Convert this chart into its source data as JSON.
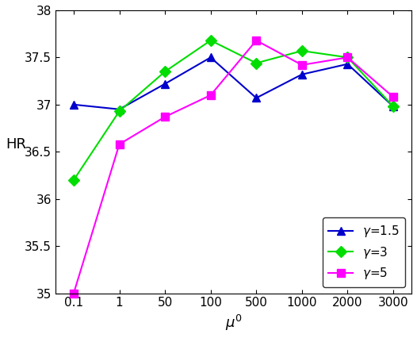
{
  "x_labels": [
    "0.1",
    "1",
    "50",
    "100",
    "500",
    "1000",
    "2000",
    "3000"
  ],
  "x_positions": [
    0,
    1,
    2,
    3,
    4,
    5,
    6,
    7
  ],
  "gamma_1_5": [
    37.0,
    36.95,
    37.22,
    37.5,
    37.07,
    37.32,
    37.43,
    36.98
  ],
  "gamma_3": [
    36.2,
    36.93,
    37.35,
    37.68,
    37.44,
    37.57,
    37.5,
    36.98
  ],
  "gamma_5": [
    35.0,
    36.58,
    36.87,
    37.1,
    37.68,
    37.42,
    37.5,
    37.08
  ],
  "color_1_5": "#0000cc",
  "color_3": "#00dd00",
  "color_5": "#ff00ff",
  "ylabel": "HR",
  "xlabel": "$\\mu^0$",
  "ylim": [
    35.0,
    38.0
  ],
  "yticks": [
    35,
    35.5,
    36,
    36.5,
    37,
    37.5,
    38
  ],
  "ytick_labels": [
    "35",
    "35.5",
    "36",
    "36.5",
    "37",
    "37.5",
    "38"
  ],
  "legend_labels": [
    "$\\gamma$=1.5",
    "$\\gamma$=3",
    "$\\gamma$=5"
  ]
}
